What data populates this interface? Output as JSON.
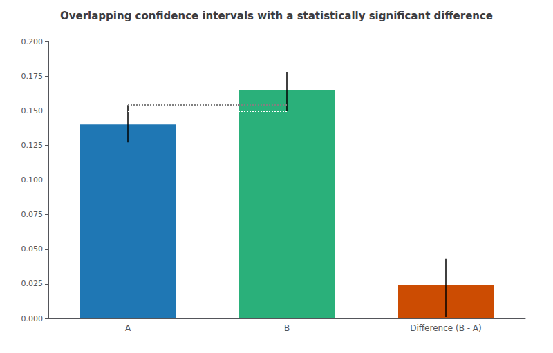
{
  "chart_data": {
    "type": "bar",
    "title": "Overlapping confidence intervals with a statistically significant difference",
    "categories": [
      "A",
      "B",
      "Difference (B - A)"
    ],
    "values": [
      0.14,
      0.165,
      0.024
    ],
    "colors": [
      "#1f77b4",
      "#2ab07a",
      "#cc4c02"
    ],
    "error_lower": [
      0.127,
      0.15,
      0.001
    ],
    "error_upper": [
      0.154,
      0.178,
      0.043
    ],
    "overlap_lines": [
      {
        "value": 0.154,
        "color": "gray",
        "line_style": "dotted"
      },
      {
        "value": 0.15,
        "color": "white",
        "line_style": "dotted"
      }
    ],
    "ylim": [
      0.0,
      0.2
    ],
    "yticks": [
      {
        "value": 0.0,
        "label": "0.000"
      },
      0.025,
      {
        "value": 0.05,
        "label": "0.050"
      },
      0.075,
      {
        "value": 0.1,
        "label": "0.100"
      },
      0.125,
      {
        "value": 0.15,
        "label": "0.150"
      },
      0.175,
      {
        "value": 0.2,
        "label": "0.200"
      }
    ],
    "grid": false
  }
}
